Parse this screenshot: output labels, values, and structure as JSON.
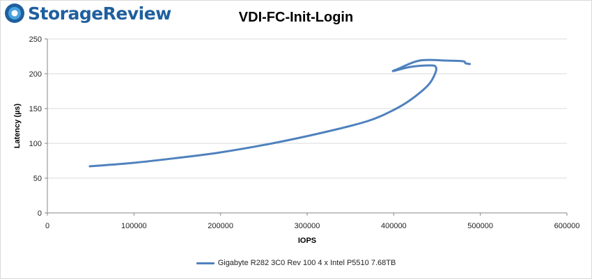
{
  "brand": {
    "name": "StorageReview",
    "colors": {
      "primary": "#1f5f9e",
      "accent": "#4aa3df"
    },
    "logo_icon": "storage-review-logo-icon"
  },
  "chart_data": {
    "type": "line",
    "title": "VDI-FC-Init-Login",
    "xlabel": "IOPS",
    "ylabel": "Latency (µs)",
    "xlim": [
      0,
      600000
    ],
    "ylim": [
      0,
      250
    ],
    "xticks": [
      0,
      100000,
      200000,
      300000,
      400000,
      500000,
      600000
    ],
    "yticks": [
      0,
      50,
      100,
      150,
      200,
      250
    ],
    "grid": "horizontal",
    "legend_position": "bottom",
    "series": [
      {
        "name": "Gigabyte R282 3C0 Rev 100 4 x Intel P5510 7.68TB",
        "color": "#4f81bd",
        "points": [
          [
            49000,
            67
          ],
          [
            100000,
            72
          ],
          [
            150000,
            79
          ],
          [
            200000,
            87
          ],
          [
            260000,
            100
          ],
          [
            320000,
            116
          ],
          [
            370000,
            132
          ],
          [
            400000,
            148
          ],
          [
            420000,
            163
          ],
          [
            440000,
            184
          ],
          [
            448000,
            201
          ],
          [
            448500,
            210
          ],
          [
            442000,
            212
          ],
          [
            420000,
            210
          ],
          [
            400000,
            204
          ],
          [
            405000,
            207
          ],
          [
            430000,
            219
          ],
          [
            460000,
            219
          ],
          [
            480000,
            218
          ],
          [
            483000,
            215
          ],
          [
            488000,
            214
          ]
        ]
      }
    ]
  }
}
